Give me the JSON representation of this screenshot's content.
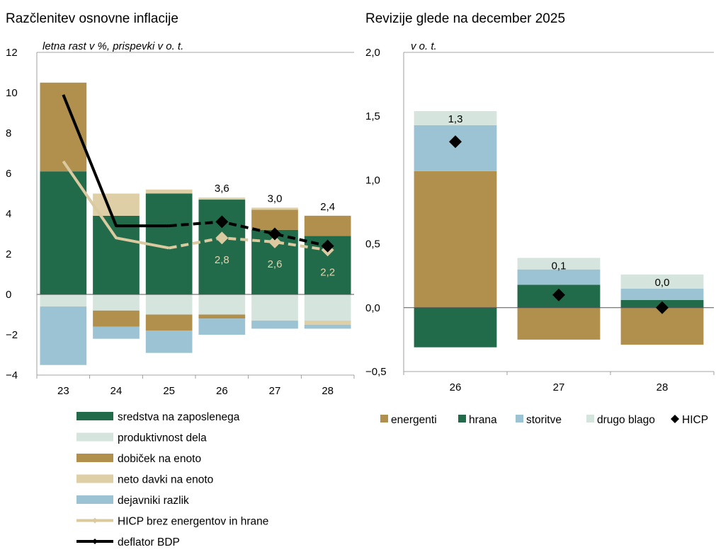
{
  "colors": {
    "sredstva": "#216a4a",
    "produktivnost": "#d5e5de",
    "dobicek": "#b0904c",
    "davki": "#dfcfa7",
    "razlik": "#9cc3d4",
    "hicp_core": "#dbc9a0",
    "deflator": "#000000",
    "energenti": "#b0904c",
    "hrana": "#216a4a",
    "storitve": "#9cc3d4",
    "drugo": "#d5e5de",
    "hicp": "#000000"
  },
  "chart_data": [
    {
      "type": "bar",
      "title": "Razčlenitev osnovne inflacije",
      "ylabel": "letna rast v %, prispevki v o. t.",
      "ylim": [
        -4,
        12
      ],
      "yticks": [
        "−4",
        "−2",
        "0",
        "2",
        "4",
        "6",
        "8",
        "10",
        "12"
      ],
      "ytick_values": [
        -4,
        -2,
        0,
        2,
        4,
        6,
        8,
        10,
        12
      ],
      "categories": [
        "23",
        "24",
        "25",
        "26",
        "27",
        "28"
      ],
      "series": [
        {
          "name": "sredstva na zaposlenega",
          "key": "sredstva",
          "values": [
            6.1,
            3.9,
            5.0,
            4.7,
            3.2,
            2.9
          ]
        },
        {
          "name": "produktivnost dela",
          "key": "produktivnost",
          "values": [
            -0.6,
            -0.8,
            -1.0,
            -1.0,
            -1.3,
            -1.3
          ]
        },
        {
          "name": "dobiček na enoto",
          "key": "dobicek",
          "values": [
            4.4,
            -0.8,
            -0.8,
            -0.2,
            1.0,
            1.0
          ]
        },
        {
          "name": "neto davki na enoto",
          "key": "davki",
          "values": [
            0.0,
            1.1,
            0.2,
            0.1,
            0.1,
            -0.2
          ]
        },
        {
          "name": "dejavniki razlik",
          "key": "razlik",
          "values": [
            -2.9,
            -0.6,
            -1.1,
            -0.8,
            -0.4,
            -0.2
          ]
        }
      ],
      "lines": [
        {
          "name": "HICP brez energentov in hrane",
          "key": "hicp_core",
          "values": [
            6.6,
            2.8,
            2.3,
            2.8,
            2.6,
            2.2
          ],
          "dashed_from": 2
        },
        {
          "name": "deflator BDP",
          "key": "deflator",
          "values": [
            9.9,
            3.4,
            3.4,
            3.6,
            3.0,
            2.4
          ],
          "dashed_from": 2
        }
      ],
      "markers_from": 3,
      "labels_top": [
        {
          "index": 3,
          "text": "3,6"
        },
        {
          "index": 4,
          "text": "3,0"
        },
        {
          "index": 5,
          "text": "2,4"
        }
      ],
      "labels_inside": [
        {
          "index": 3,
          "text": "2,8"
        },
        {
          "index": 4,
          "text": "2,6"
        },
        {
          "index": 5,
          "text": "2,2"
        }
      ],
      "legend": [
        {
          "label": "sredstva na zaposlenega",
          "key": "sredstva",
          "kind": "box"
        },
        {
          "label": "produktivnost dela",
          "key": "produktivnost",
          "kind": "box"
        },
        {
          "label": "dobiček na enoto",
          "key": "dobicek",
          "kind": "box"
        },
        {
          "label": "neto davki na enoto",
          "key": "davki",
          "kind": "box"
        },
        {
          "label": "dejavniki razlik",
          "key": "razlik",
          "kind": "box"
        },
        {
          "label": "HICP brez energentov in hrane",
          "key": "hicp_core",
          "kind": "line"
        },
        {
          "label": "deflator BDP",
          "key": "deflator",
          "kind": "line"
        }
      ],
      "legend_placement": "bottom"
    },
    {
      "type": "bar",
      "title": "Revizije glede na december 2025",
      "ylabel": "v o. t.",
      "ylim": [
        -0.5,
        2.0
      ],
      "yticks": [
        "−0,5",
        "0,0",
        "0,5",
        "1,0",
        "1,5",
        "2,0"
      ],
      "ytick_values": [
        -0.5,
        0.0,
        0.5,
        1.0,
        1.5,
        2.0
      ],
      "categories": [
        "26",
        "27",
        "28"
      ],
      "series": [
        {
          "name": "energenti",
          "key": "energenti",
          "values": [
            1.07,
            -0.25,
            -0.29
          ]
        },
        {
          "name": "hrana",
          "key": "hrana",
          "values": [
            -0.31,
            0.18,
            0.06
          ]
        },
        {
          "name": "storitve",
          "key": "storitve",
          "values": [
            0.36,
            0.12,
            0.09
          ]
        },
        {
          "name": "drugo blago",
          "key": "drugo",
          "values": [
            0.11,
            0.09,
            0.11
          ]
        }
      ],
      "markers": {
        "name": "HICP",
        "key": "hicp",
        "values": [
          1.3,
          0.1,
          0.0
        ]
      },
      "labels_top": [
        {
          "index": 0,
          "text": "1,3"
        },
        {
          "index": 1,
          "text": "0,1"
        },
        {
          "index": 2,
          "text": "0,0"
        }
      ],
      "legend": [
        {
          "label": "energenti",
          "key": "energenti",
          "kind": "box"
        },
        {
          "label": "hrana",
          "key": "hrana",
          "kind": "box"
        },
        {
          "label": "storitve",
          "key": "storitve",
          "kind": "box"
        },
        {
          "label": "drugo blago",
          "key": "drugo",
          "kind": "box"
        },
        {
          "label": "HICP",
          "key": "hicp",
          "kind": "diamond"
        }
      ],
      "legend_placement": "bottom"
    }
  ]
}
